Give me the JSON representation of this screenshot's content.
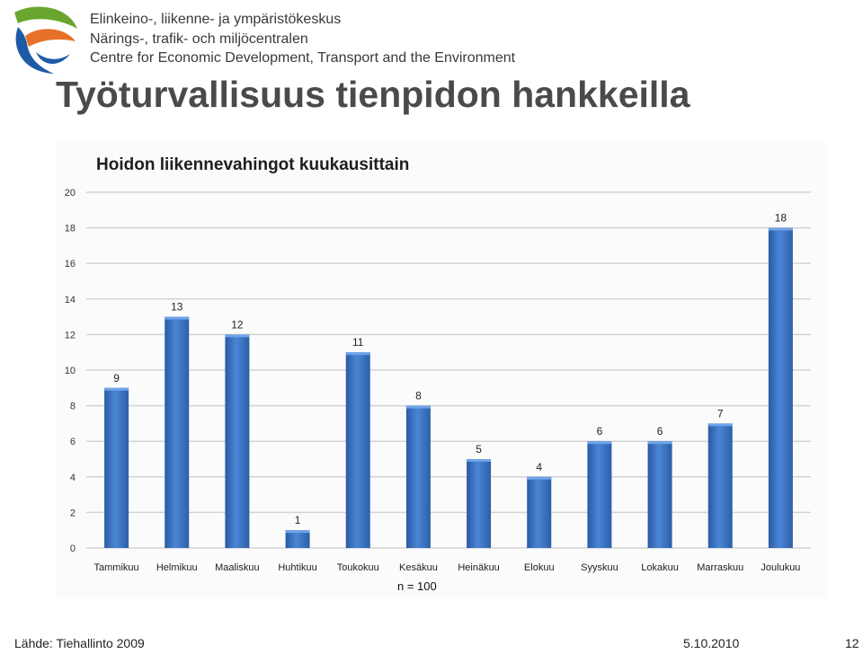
{
  "header": {
    "org_line_1": "Elinkeino-, liikenne- ja ympäristökeskus",
    "org_line_2": "Närings-, trafik- och miljöcentralen",
    "org_line_3": "Centre for Economic Development, Transport and the Environment",
    "logo_colors": [
      "#6aa62f",
      "#e8702a",
      "#1f5aa6"
    ]
  },
  "slide": {
    "title": "Työturvallisuus tienpidon hankkeilla"
  },
  "chart_data": {
    "type": "bar",
    "title": "Hoidon liikennevahingot kuukausittain",
    "categories": [
      "Tammikuu",
      "Helmikuu",
      "Maaliskuu",
      "Huhtikuu",
      "Toukokuu",
      "Kesäkuu",
      "Heinäkuu",
      "Elokuu",
      "Syyskuu",
      "Lokakuu",
      "Marraskuu",
      "Joulukuu"
    ],
    "values": [
      9,
      13,
      12,
      1,
      11,
      8,
      5,
      4,
      6,
      6,
      7,
      18
    ],
    "ylim": [
      0,
      20
    ],
    "yticks": [
      0,
      2,
      4,
      6,
      8,
      10,
      12,
      14,
      16,
      18,
      20
    ],
    "grid": true,
    "legend": "none",
    "data_labels": true,
    "bar_color": "#3b73c2",
    "note": "n = 100"
  },
  "footer": {
    "source": "Lähde: Tiehallinto 2009",
    "date": "5.10.2010",
    "page": "12"
  }
}
